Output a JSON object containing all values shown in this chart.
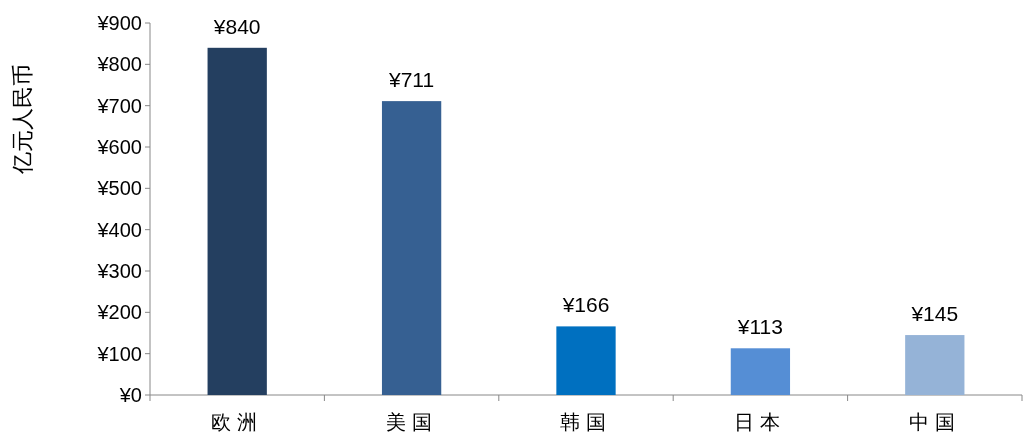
{
  "chart_data": {
    "type": "bar",
    "ylabel": "亿元人民币",
    "categories": [
      "欧洲",
      "美国",
      "韩国",
      "日本",
      "中国"
    ],
    "values": [
      840,
      711,
      166,
      113,
      145
    ],
    "colors": [
      "#243f60",
      "#366092",
      "#0070c0",
      "#558ed5",
      "#95b3d7"
    ],
    "value_labels": [
      "¥840",
      "¥711",
      "¥166",
      "¥113",
      "¥145"
    ],
    "ylim": [
      0,
      900
    ],
    "yticks": [
      {
        "value": 0,
        "label": "¥0"
      },
      {
        "value": 100,
        "label": "¥100"
      },
      {
        "value": 200,
        "label": "¥200"
      },
      {
        "value": 300,
        "label": "¥300"
      },
      {
        "value": 400,
        "label": "¥400"
      },
      {
        "value": 500,
        "label": "¥500"
      },
      {
        "value": 600,
        "label": "¥600"
      },
      {
        "value": 700,
        "label": "¥700"
      },
      {
        "value": 800,
        "label": "¥800"
      },
      {
        "value": 900,
        "label": "¥900"
      }
    ],
    "grid": false
  }
}
